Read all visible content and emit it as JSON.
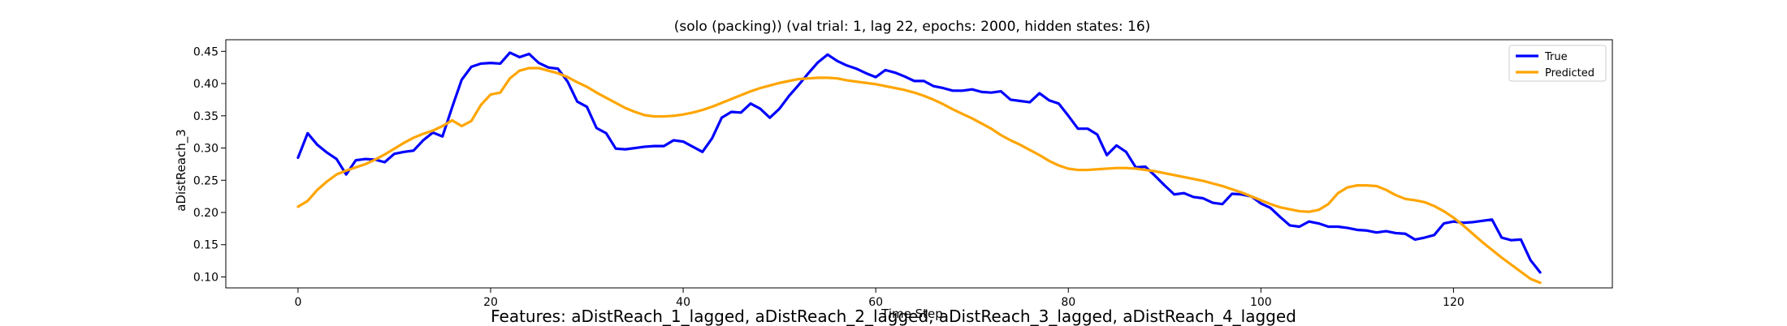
{
  "caption": "Features: aDistReach_1_lagged, aDistReach_2_lagged, aDistReach_3_lagged, aDistReach_4_lagged",
  "chart_data": {
    "type": "line",
    "title": "(solo (packing)) (val trial: 1, lag 22, epochs: 2000, hidden states: 16)",
    "xlabel": "Time Step",
    "ylabel": "aDistReach_3",
    "xlim": [
      -7.5,
      136.5
    ],
    "ylim": [
      0.083,
      0.468
    ],
    "xticks": [
      0,
      20,
      40,
      60,
      80,
      100,
      120
    ],
    "yticks": [
      0.1,
      0.15,
      0.2,
      0.25,
      0.3,
      0.35,
      0.4,
      0.45
    ],
    "grid": false,
    "legend_position": "top-right",
    "x": [
      0,
      1,
      2,
      3,
      4,
      5,
      6,
      7,
      8,
      9,
      10,
      11,
      12,
      13,
      14,
      15,
      16,
      17,
      18,
      19,
      20,
      21,
      22,
      23,
      24,
      25,
      26,
      27,
      28,
      29,
      30,
      31,
      32,
      33,
      34,
      35,
      36,
      37,
      38,
      39,
      40,
      41,
      42,
      43,
      44,
      45,
      46,
      47,
      48,
      49,
      50,
      51,
      52,
      53,
      54,
      55,
      56,
      57,
      58,
      59,
      60,
      61,
      62,
      63,
      64,
      65,
      66,
      67,
      68,
      69,
      70,
      71,
      72,
      73,
      74,
      75,
      76,
      77,
      78,
      79,
      80,
      81,
      82,
      83,
      84,
      85,
      86,
      87,
      88,
      89,
      90,
      91,
      92,
      93,
      94,
      95,
      96,
      97,
      98,
      99,
      100,
      101,
      102,
      103,
      104,
      105,
      106,
      107,
      108,
      109,
      110,
      111,
      112,
      113,
      114,
      115,
      116,
      117,
      118,
      119,
      120,
      121,
      122,
      123,
      124,
      125,
      126,
      127,
      128,
      129
    ],
    "series": [
      {
        "name": "True",
        "color": "#0000ff",
        "values": [
          0.285,
          0.323,
          0.305,
          0.293,
          0.283,
          0.259,
          0.281,
          0.283,
          0.282,
          0.278,
          0.291,
          0.294,
          0.296,
          0.312,
          0.324,
          0.318,
          0.363,
          0.406,
          0.426,
          0.431,
          0.432,
          0.431,
          0.448,
          0.441,
          0.446,
          0.432,
          0.425,
          0.423,
          0.403,
          0.372,
          0.364,
          0.331,
          0.323,
          0.299,
          0.298,
          0.3,
          0.302,
          0.303,
          0.303,
          0.312,
          0.31,
          0.302,
          0.294,
          0.315,
          0.347,
          0.356,
          0.355,
          0.369,
          0.361,
          0.347,
          0.361,
          0.381,
          0.398,
          0.416,
          0.433,
          0.445,
          0.435,
          0.428,
          0.423,
          0.416,
          0.41,
          0.421,
          0.417,
          0.411,
          0.404,
          0.404,
          0.396,
          0.393,
          0.389,
          0.389,
          0.391,
          0.387,
          0.386,
          0.388,
          0.375,
          0.373,
          0.371,
          0.385,
          0.374,
          0.369,
          0.35,
          0.33,
          0.33,
          0.321,
          0.289,
          0.304,
          0.294,
          0.27,
          0.271,
          0.257,
          0.242,
          0.228,
          0.23,
          0.224,
          0.222,
          0.215,
          0.213,
          0.229,
          0.228,
          0.225,
          0.214,
          0.207,
          0.193,
          0.18,
          0.178,
          0.186,
          0.183,
          0.178,
          0.178,
          0.176,
          0.173,
          0.172,
          0.169,
          0.171,
          0.168,
          0.167,
          0.158,
          0.161,
          0.165,
          0.183,
          0.186,
          0.184,
          0.185,
          0.187,
          0.189,
          0.161,
          0.157,
          0.158,
          0.126,
          0.107
        ]
      },
      {
        "name": "Predicted",
        "color": "#ffa500",
        "values": [
          0.209,
          0.218,
          0.235,
          0.248,
          0.259,
          0.265,
          0.27,
          0.275,
          0.282,
          0.29,
          0.299,
          0.308,
          0.316,
          0.322,
          0.327,
          0.334,
          0.343,
          0.334,
          0.342,
          0.367,
          0.383,
          0.386,
          0.408,
          0.42,
          0.424,
          0.424,
          0.42,
          0.416,
          0.41,
          0.402,
          0.395,
          0.386,
          0.378,
          0.37,
          0.362,
          0.356,
          0.351,
          0.349,
          0.349,
          0.35,
          0.352,
          0.355,
          0.359,
          0.364,
          0.37,
          0.376,
          0.382,
          0.388,
          0.393,
          0.397,
          0.401,
          0.404,
          0.407,
          0.408,
          0.409,
          0.409,
          0.408,
          0.405,
          0.403,
          0.401,
          0.399,
          0.396,
          0.393,
          0.39,
          0.386,
          0.381,
          0.375,
          0.368,
          0.36,
          0.353,
          0.346,
          0.338,
          0.33,
          0.32,
          0.312,
          0.305,
          0.297,
          0.289,
          0.28,
          0.273,
          0.268,
          0.266,
          0.266,
          0.267,
          0.268,
          0.269,
          0.269,
          0.268,
          0.266,
          0.264,
          0.261,
          0.258,
          0.255,
          0.252,
          0.249,
          0.245,
          0.241,
          0.236,
          0.231,
          0.225,
          0.219,
          0.213,
          0.208,
          0.205,
          0.202,
          0.201,
          0.204,
          0.213,
          0.23,
          0.239,
          0.242,
          0.242,
          0.241,
          0.235,
          0.227,
          0.221,
          0.219,
          0.216,
          0.21,
          0.202,
          0.192,
          0.18,
          0.167,
          0.154,
          0.142,
          0.13,
          0.119,
          0.108,
          0.097,
          0.091
        ]
      }
    ]
  }
}
